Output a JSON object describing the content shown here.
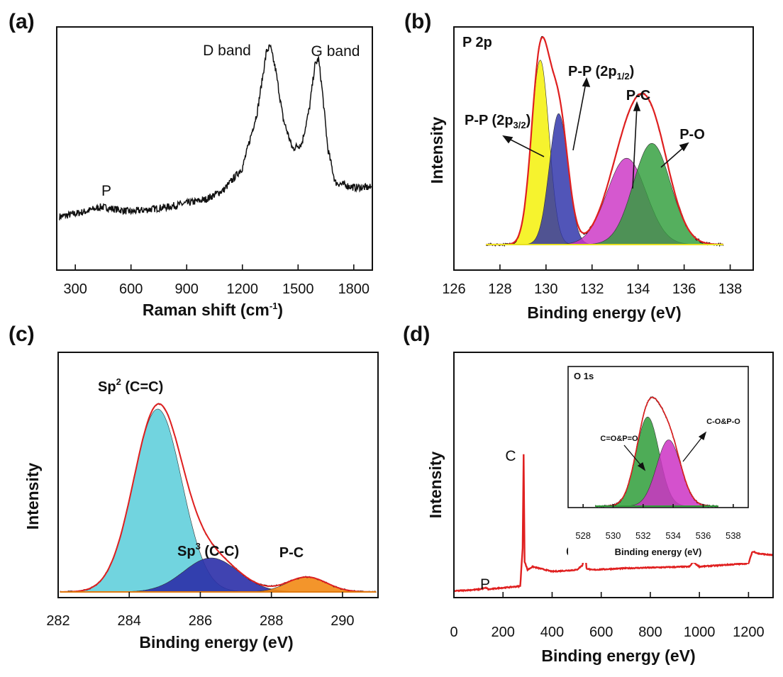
{
  "colors": {
    "ink": "#111111",
    "fit": "#e02020",
    "survey": "#e02020",
    "yellow": "#f4f000",
    "blue": "#2b2fa8",
    "magenta": "#cc33c4",
    "green": "#2f9e3a",
    "cyan": "#62cfdc",
    "orange": "#f28a14"
  },
  "chart_data": [
    {
      "panel": "(a)",
      "type": "line",
      "title": "",
      "xlabel": "Raman shift (cm",
      "xlabel_sup": "-1",
      "xlabel_end": ")",
      "ylabel": "",
      "xlim": [
        200,
        1900
      ],
      "ylim": [
        0,
        1
      ],
      "xticks": [
        300,
        600,
        900,
        1200,
        1500,
        1800
      ],
      "annotations": [
        {
          "text": "P",
          "x": 440,
          "y": 0.31
        },
        {
          "text": "D band",
          "x": 1260,
          "y": 0.95
        },
        {
          "text": "G band",
          "x": 1620,
          "y": 0.95
        }
      ],
      "series": [
        {
          "name": "Raman spectrum",
          "x": [
            220,
            350,
            440,
            600,
            800,
            1000,
            1100,
            1200,
            1280,
            1330,
            1350,
            1380,
            1420,
            1470,
            1520,
            1560,
            1590,
            1610,
            1630,
            1660,
            1700,
            1800,
            1890
          ],
          "y": [
            0.22,
            0.24,
            0.26,
            0.24,
            0.26,
            0.29,
            0.33,
            0.42,
            0.65,
            0.9,
            0.92,
            0.82,
            0.62,
            0.5,
            0.52,
            0.66,
            0.84,
            0.87,
            0.74,
            0.5,
            0.36,
            0.34,
            0.34
          ]
        }
      ]
    },
    {
      "panel": "(b)",
      "type": "area",
      "title": "P 2p",
      "xlabel": "Binding energy (eV)",
      "ylabel": "Intensity",
      "xlim": [
        126,
        139
      ],
      "ylim": [
        0,
        1
      ],
      "xticks": [
        126,
        128,
        130,
        132,
        134,
        136,
        138
      ],
      "peaks": [
        {
          "label": "P-P (2p",
          "label_sub": "3/2",
          "label_end": ")",
          "center": 129.75,
          "height": 0.62,
          "fwhm": 0.9,
          "color": "yellow"
        },
        {
          "label": "P-P (2p",
          "label_sub": "1/2",
          "label_end": ")",
          "center": 130.55,
          "height": 0.44,
          "fwhm": 0.95,
          "color": "blue"
        },
        {
          "label": "P-C",
          "center": 133.5,
          "height": 0.29,
          "fwhm": 2.0,
          "color": "magenta"
        },
        {
          "label": "P-O",
          "center": 134.6,
          "height": 0.34,
          "fwhm": 1.9,
          "color": "green"
        }
      ]
    },
    {
      "panel": "(c)",
      "type": "area",
      "title": "",
      "xlabel": "Binding energy (eV)",
      "ylabel": "Intensity",
      "xlim": [
        282,
        291
      ],
      "ylim": [
        0,
        1
      ],
      "xticks": [
        282,
        284,
        286,
        288,
        290
      ],
      "peaks": [
        {
          "label": "Sp",
          "label_sup": "2",
          "label_end": " (C=C)",
          "center": 284.8,
          "height": 0.86,
          "fwhm": 1.6,
          "color": "cyan"
        },
        {
          "label": "Sp",
          "label_sup": "3",
          "label_end": " (C-C)",
          "center": 286.3,
          "height": 0.16,
          "fwhm": 1.8,
          "color": "blue"
        },
        {
          "label": "P-C",
          "center": 289.0,
          "height": 0.07,
          "fwhm": 1.3,
          "color": "orange"
        }
      ]
    },
    {
      "panel": "(d)",
      "type": "line",
      "title": "",
      "xlabel": "Binding energy (eV)",
      "ylabel": "Intensity",
      "xlim": [
        0,
        1300
      ],
      "ylim": [
        0,
        1
      ],
      "xticks": [
        0,
        200,
        400,
        600,
        800,
        1000,
        1200
      ],
      "annotations": [
        {
          "text": "C",
          "x": 284
        },
        {
          "text": "O",
          "x": 532
        },
        {
          "text": "P",
          "x": 133
        }
      ],
      "series": [
        {
          "name": "survey",
          "x": [
            0,
            100,
            133,
            140,
            190,
            200,
            270,
            280,
            284,
            288,
            300,
            320,
            400,
            500,
            525,
            532,
            540,
            560,
            700,
            960,
            975,
            990,
            1000,
            1200,
            1215,
            1225,
            1240,
            1300
          ],
          "y": [
            0.04,
            0.05,
            0.06,
            0.05,
            0.06,
            0.06,
            0.07,
            0.3,
            0.88,
            0.22,
            0.17,
            0.19,
            0.16,
            0.17,
            0.2,
            0.34,
            0.18,
            0.17,
            0.18,
            0.19,
            0.22,
            0.2,
            0.19,
            0.21,
            0.28,
            0.28,
            0.27,
            0.26
          ]
        }
      ],
      "inset": {
        "title": "O 1s",
        "xlabel": "Binding energy (eV)",
        "xlim": [
          527,
          539
        ],
        "ylim": [
          0,
          1
        ],
        "xticks": [
          528,
          530,
          532,
          534,
          536,
          538
        ],
        "peaks": [
          {
            "label": "C=O&P=O",
            "center": 532.3,
            "height": 0.74,
            "fwhm": 1.8,
            "color": "green"
          },
          {
            "label": "C-O&P-O",
            "center": 533.7,
            "height": 0.55,
            "fwhm": 1.9,
            "color": "magenta"
          }
        ]
      }
    }
  ]
}
